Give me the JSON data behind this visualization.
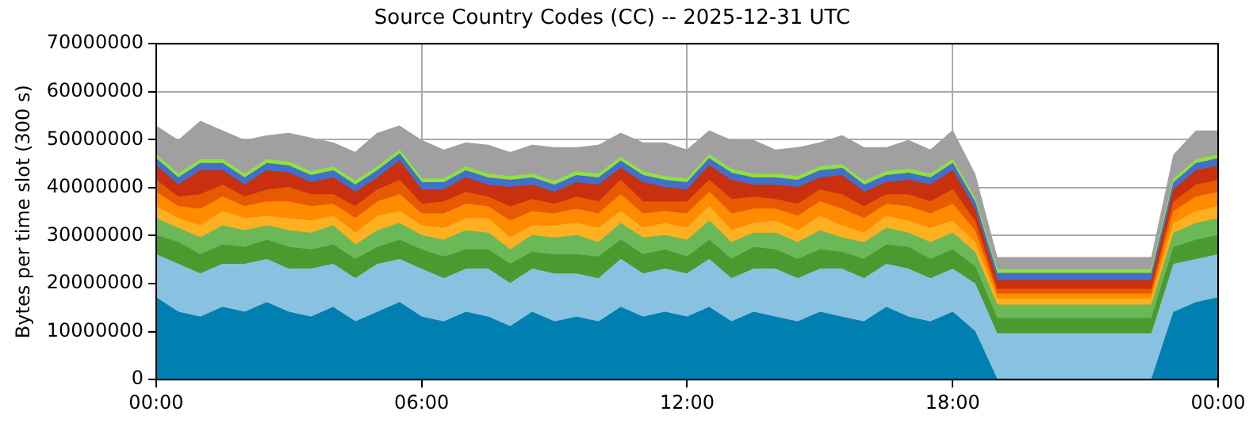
{
  "chart_data": {
    "type": "area",
    "stacked": true,
    "title": "Source Country Codes (CC) -- 2025-12-31 UTC",
    "ylabel": "Bytes per time slot (300 s)",
    "x": [
      0,
      0.5,
      1,
      1.5,
      2,
      2.5,
      3,
      3.5,
      4,
      4.5,
      5,
      5.5,
      6,
      6.5,
      7,
      7.5,
      8,
      8.5,
      9,
      9.5,
      10,
      10.5,
      11,
      11.5,
      12,
      12.5,
      13,
      13.5,
      14,
      14.5,
      15,
      15.5,
      16,
      16.5,
      17,
      17.5,
      18,
      18.5,
      19,
      19.5,
      20,
      20.5,
      21,
      21.5,
      22,
      22.5,
      23,
      23.5,
      24
    ],
    "xlim": [
      0,
      24
    ],
    "xticks": [
      {
        "value": 0,
        "label": "00:00"
      },
      {
        "value": 6,
        "label": "06:00"
      },
      {
        "value": 12,
        "label": "12:00"
      },
      {
        "value": 18,
        "label": "18:00"
      },
      {
        "value": 24,
        "label": "00:00"
      }
    ],
    "ylim": [
      0,
      70000000
    ],
    "yticks": [
      0,
      10000000,
      20000000,
      30000000,
      40000000,
      50000000,
      60000000,
      70000000
    ],
    "grid": true,
    "legend": false,
    "series": [
      {
        "color": "#0080b0",
        "values": [
          17000000.0,
          14000000.0,
          13000000.0,
          15000000.0,
          14000000.0,
          16000000.0,
          14000000.0,
          13000000.0,
          15000000.0,
          12000000.0,
          14000000.0,
          16000000.0,
          13000000.0,
          12000000.0,
          14000000.0,
          13000000.0,
          11000000.0,
          14000000.0,
          12000000.0,
          13000000.0,
          12000000.0,
          15000000.0,
          13000000.0,
          14000000.0,
          13000000.0,
          15000000.0,
          12000000.0,
          14000000.0,
          13000000.0,
          12000000.0,
          14000000.0,
          13000000.0,
          12000000.0,
          15000000.0,
          13000000.0,
          12000000.0,
          14000000.0,
          10000000.0,
          0,
          0,
          0,
          0,
          0,
          0,
          0,
          0,
          14000000.0,
          16000000.0,
          17000000.0
        ]
      },
      {
        "color": "#88c2e0",
        "values": [
          9000000.0,
          10000000.0,
          9000000.0,
          9000000.0,
          10000000.0,
          9000000.0,
          9000000.0,
          10000000.0,
          9000000.0,
          9000000.0,
          10000000.0,
          9000000.0,
          10000000.0,
          9000000.0,
          9000000.0,
          10000000.0,
          9000000.0,
          9000000.0,
          10000000.0,
          9000000.0,
          9000000.0,
          10000000.0,
          9000000.0,
          9000000.0,
          9000000.0,
          10000000.0,
          9000000.0,
          9000000.0,
          10000000.0,
          9000000.0,
          9000000.0,
          10000000.0,
          9000000.0,
          9000000.0,
          10000000.0,
          9000000.0,
          9000000.0,
          10000000.0,
          9500000.0,
          9500000.0,
          9500000.0,
          9500000.0,
          9500000.0,
          9500000.0,
          9500000.0,
          9500000.0,
          10000000.0,
          9000000.0,
          9000000.0
        ]
      },
      {
        "color": "#4a9a30",
        "values": [
          4000000.0,
          4500000.0,
          4000000.0,
          4000000.0,
          3500000.0,
          4000000.0,
          4500000.0,
          4000000.0,
          4000000.0,
          4000000.0,
          3500000.0,
          4000000.0,
          4000000.0,
          4500000.0,
          4000000.0,
          4000000.0,
          4000000.0,
          3500000.0,
          4000000.0,
          4000000.0,
          4500000.0,
          4000000.0,
          4000000.0,
          4000000.0,
          3500000.0,
          4000000.0,
          4000000.0,
          4500000.0,
          4000000.0,
          4000000.0,
          4000000.0,
          3500000.0,
          4000000.0,
          4000000.0,
          4500000.0,
          4000000.0,
          4000000.0,
          3500000.0,
          3200000.0,
          3200000.0,
          3200000.0,
          3200000.0,
          3200000.0,
          3200000.0,
          3200000.0,
          3200000.0,
          3500000.0,
          4000000.0,
          4000000.0
        ]
      },
      {
        "color": "#6ab858",
        "values": [
          3500000.0,
          3000000.0,
          3500000.0,
          4000000.0,
          3500000.0,
          3000000.0,
          3500000.0,
          3500000.0,
          4000000.0,
          3000000.0,
          3500000.0,
          3500000.0,
          3000000.0,
          3500000.0,
          4000000.0,
          3500000.0,
          3000000.0,
          3500000.0,
          3500000.0,
          4000000.0,
          3000000.0,
          3500000.0,
          3500000.0,
          3000000.0,
          3500000.0,
          4000000.0,
          3500000.0,
          3000000.0,
          3500000.0,
          3500000.0,
          4000000.0,
          3000000.0,
          3500000.0,
          3500000.0,
          3000000.0,
          3500000.0,
          3500000.0,
          3000000.0,
          2800000.0,
          2800000.0,
          2800000.0,
          2800000.0,
          2800000.0,
          2800000.0,
          2800000.0,
          2800000.0,
          3000000.0,
          3500000.0,
          3500000.0
        ]
      },
      {
        "color": "#ffb020",
        "values": [
          2500000.0,
          2000000.0,
          2500000.0,
          3000000.0,
          2500000.0,
          2000000.0,
          2500000.0,
          2500000.0,
          2000000.0,
          2500000.0,
          3000000.0,
          2500000.0,
          2000000.0,
          2500000.0,
          2500000.0,
          3000000.0,
          2500000.0,
          2000000.0,
          2500000.0,
          2500000.0,
          3000000.0,
          2500000.0,
          2000000.0,
          2500000.0,
          2500000.0,
          3000000.0,
          2500000.0,
          2000000.0,
          2500000.0,
          2500000.0,
          3000000.0,
          2500000.0,
          2000000.0,
          2500000.0,
          2500000.0,
          3000000.0,
          2500000.0,
          2000000.0,
          1300000.0,
          1300000.0,
          1300000.0,
          1300000.0,
          1300000.0,
          1300000.0,
          1300000.0,
          1300000.0,
          2000000.0,
          2500000.0,
          2500000.0
        ]
      },
      {
        "color": "#ff8c00",
        "values": [
          3000000.0,
          2500000.0,
          3500000.0,
          3000000.0,
          2500000.0,
          3000000.0,
          3500000.0,
          3000000.0,
          2500000.0,
          3000000.0,
          3000000.0,
          3500000.0,
          2500000.0,
          3000000.0,
          3000000.0,
          2500000.0,
          3500000.0,
          3000000.0,
          2500000.0,
          3000000.0,
          3000000.0,
          3500000.0,
          3000000.0,
          2500000.0,
          3000000.0,
          3000000.0,
          3500000.0,
          3000000.0,
          2500000.0,
          3000000.0,
          3000000.0,
          3500000.0,
          3000000.0,
          2500000.0,
          3000000.0,
          3000000.0,
          3500000.0,
          2500000.0,
          1000000.0,
          1000000.0,
          1000000.0,
          1000000.0,
          1000000.0,
          1000000.0,
          1000000.0,
          1000000.0,
          2500000.0,
          3000000.0,
          3000000.0
        ]
      },
      {
        "color": "#e85a00",
        "values": [
          2500000.0,
          2000000.0,
          3000000.0,
          2500000.0,
          2000000.0,
          2500000.0,
          3000000.0,
          2500000.0,
          2000000.0,
          2500000.0,
          2500000.0,
          3000000.0,
          2000000.0,
          2500000.0,
          2500000.0,
          2000000.0,
          3000000.0,
          2500000.0,
          2000000.0,
          2500000.0,
          2500000.0,
          3000000.0,
          2500000.0,
          2000000.0,
          2500000.0,
          2500000.0,
          3000000.0,
          2500000.0,
          2000000.0,
          2500000.0,
          2500000.0,
          3000000.0,
          2500000.0,
          2000000.0,
          2500000.0,
          2500000.0,
          3000000.0,
          2000000.0,
          1000000.0,
          1000000.0,
          1000000.0,
          1000000.0,
          1000000.0,
          1000000.0,
          1000000.0,
          1000000.0,
          2000000.0,
          2500000.0,
          2500000.0
        ]
      },
      {
        "color": "#c83010",
        "values": [
          3000000.0,
          2500000.0,
          5000000.0,
          3000000.0,
          2500000.0,
          4000000.0,
          3000000.0,
          2500000.0,
          3500000.0,
          3000000.0,
          2500000.0,
          4000000.0,
          3000000.0,
          2500000.0,
          3000000.0,
          2500000.0,
          4000000.0,
          3000000.0,
          2500000.0,
          3000000.0,
          3500000.0,
          2500000.0,
          4000000.0,
          3000000.0,
          2500000.0,
          3000000.0,
          4000000.0,
          2500000.0,
          3000000.0,
          3500000.0,
          2500000.0,
          4000000.0,
          3000000.0,
          2500000.0,
          3000000.0,
          3500000.0,
          4000000.0,
          2500000.0,
          1800000.0,
          1800000.0,
          1800000.0,
          1800000.0,
          1800000.0,
          1800000.0,
          1800000.0,
          1800000.0,
          2500000.0,
          3000000.0,
          3000000.0
        ]
      },
      {
        "color": "#4070c8",
        "values": [
          1500000.0,
          1500000.0,
          1500000.0,
          1500000.0,
          1500000.0,
          1500000.0,
          1500000.0,
          1500000.0,
          1500000.0,
          1500000.0,
          1500000.0,
          1500000.0,
          1500000.0,
          1500000.0,
          1500000.0,
          1500000.0,
          1500000.0,
          1500000.0,
          1500000.0,
          1500000.0,
          1500000.0,
          1500000.0,
          1500000.0,
          1500000.0,
          1500000.0,
          1500000.0,
          1500000.0,
          1500000.0,
          1500000.0,
          1500000.0,
          1500000.0,
          1500000.0,
          1500000.0,
          1500000.0,
          1500000.0,
          1500000.0,
          1500000.0,
          1500000.0,
          1500000.0,
          1500000.0,
          1500000.0,
          1500000.0,
          1500000.0,
          1500000.0,
          1500000.0,
          1500000.0,
          1500000.0,
          1500000.0,
          1500000.0
        ]
      },
      {
        "color": "#90e040",
        "values": [
          800000.0,
          800000.0,
          800000.0,
          800000.0,
          800000.0,
          800000.0,
          800000.0,
          800000.0,
          800000.0,
          800000.0,
          800000.0,
          800000.0,
          800000.0,
          800000.0,
          800000.0,
          800000.0,
          800000.0,
          800000.0,
          800000.0,
          800000.0,
          800000.0,
          800000.0,
          800000.0,
          800000.0,
          800000.0,
          800000.0,
          800000.0,
          800000.0,
          800000.0,
          800000.0,
          800000.0,
          800000.0,
          800000.0,
          800000.0,
          800000.0,
          800000.0,
          800000.0,
          800000.0,
          800000.0,
          800000.0,
          800000.0,
          800000.0,
          800000.0,
          800000.0,
          800000.0,
          800000.0,
          800000.0,
          800000.0,
          800000.0
        ]
      },
      {
        "color": "#a0a0a0",
        "values": [
          6000000.0,
          7000000.0,
          8000000.0,
          6000000.0,
          7000000.0,
          5000000.0,
          6000000.0,
          7000000.0,
          5000000.0,
          6000000.0,
          7000000.0,
          5000000.0,
          8000000.0,
          6000000.0,
          5000000.0,
          6000000.0,
          5000000.0,
          6000000.0,
          7000000.0,
          5000000.0,
          6000000.0,
          5000000.0,
          6000000.0,
          7000000.0,
          6000000.0,
          5000000.0,
          6000000.0,
          7000000.0,
          5000000.0,
          6000000.0,
          5000000.0,
          6000000.0,
          7000000.0,
          5000000.0,
          6000000.0,
          5000000.0,
          6000000.0,
          5000000.0,
          2500000.0,
          2500000.0,
          2500000.0,
          2500000.0,
          2500000.0,
          2500000.0,
          2500000.0,
          2500000.0,
          5000000.0,
          6000000.0,
          5000000.0
        ]
      }
    ]
  }
}
